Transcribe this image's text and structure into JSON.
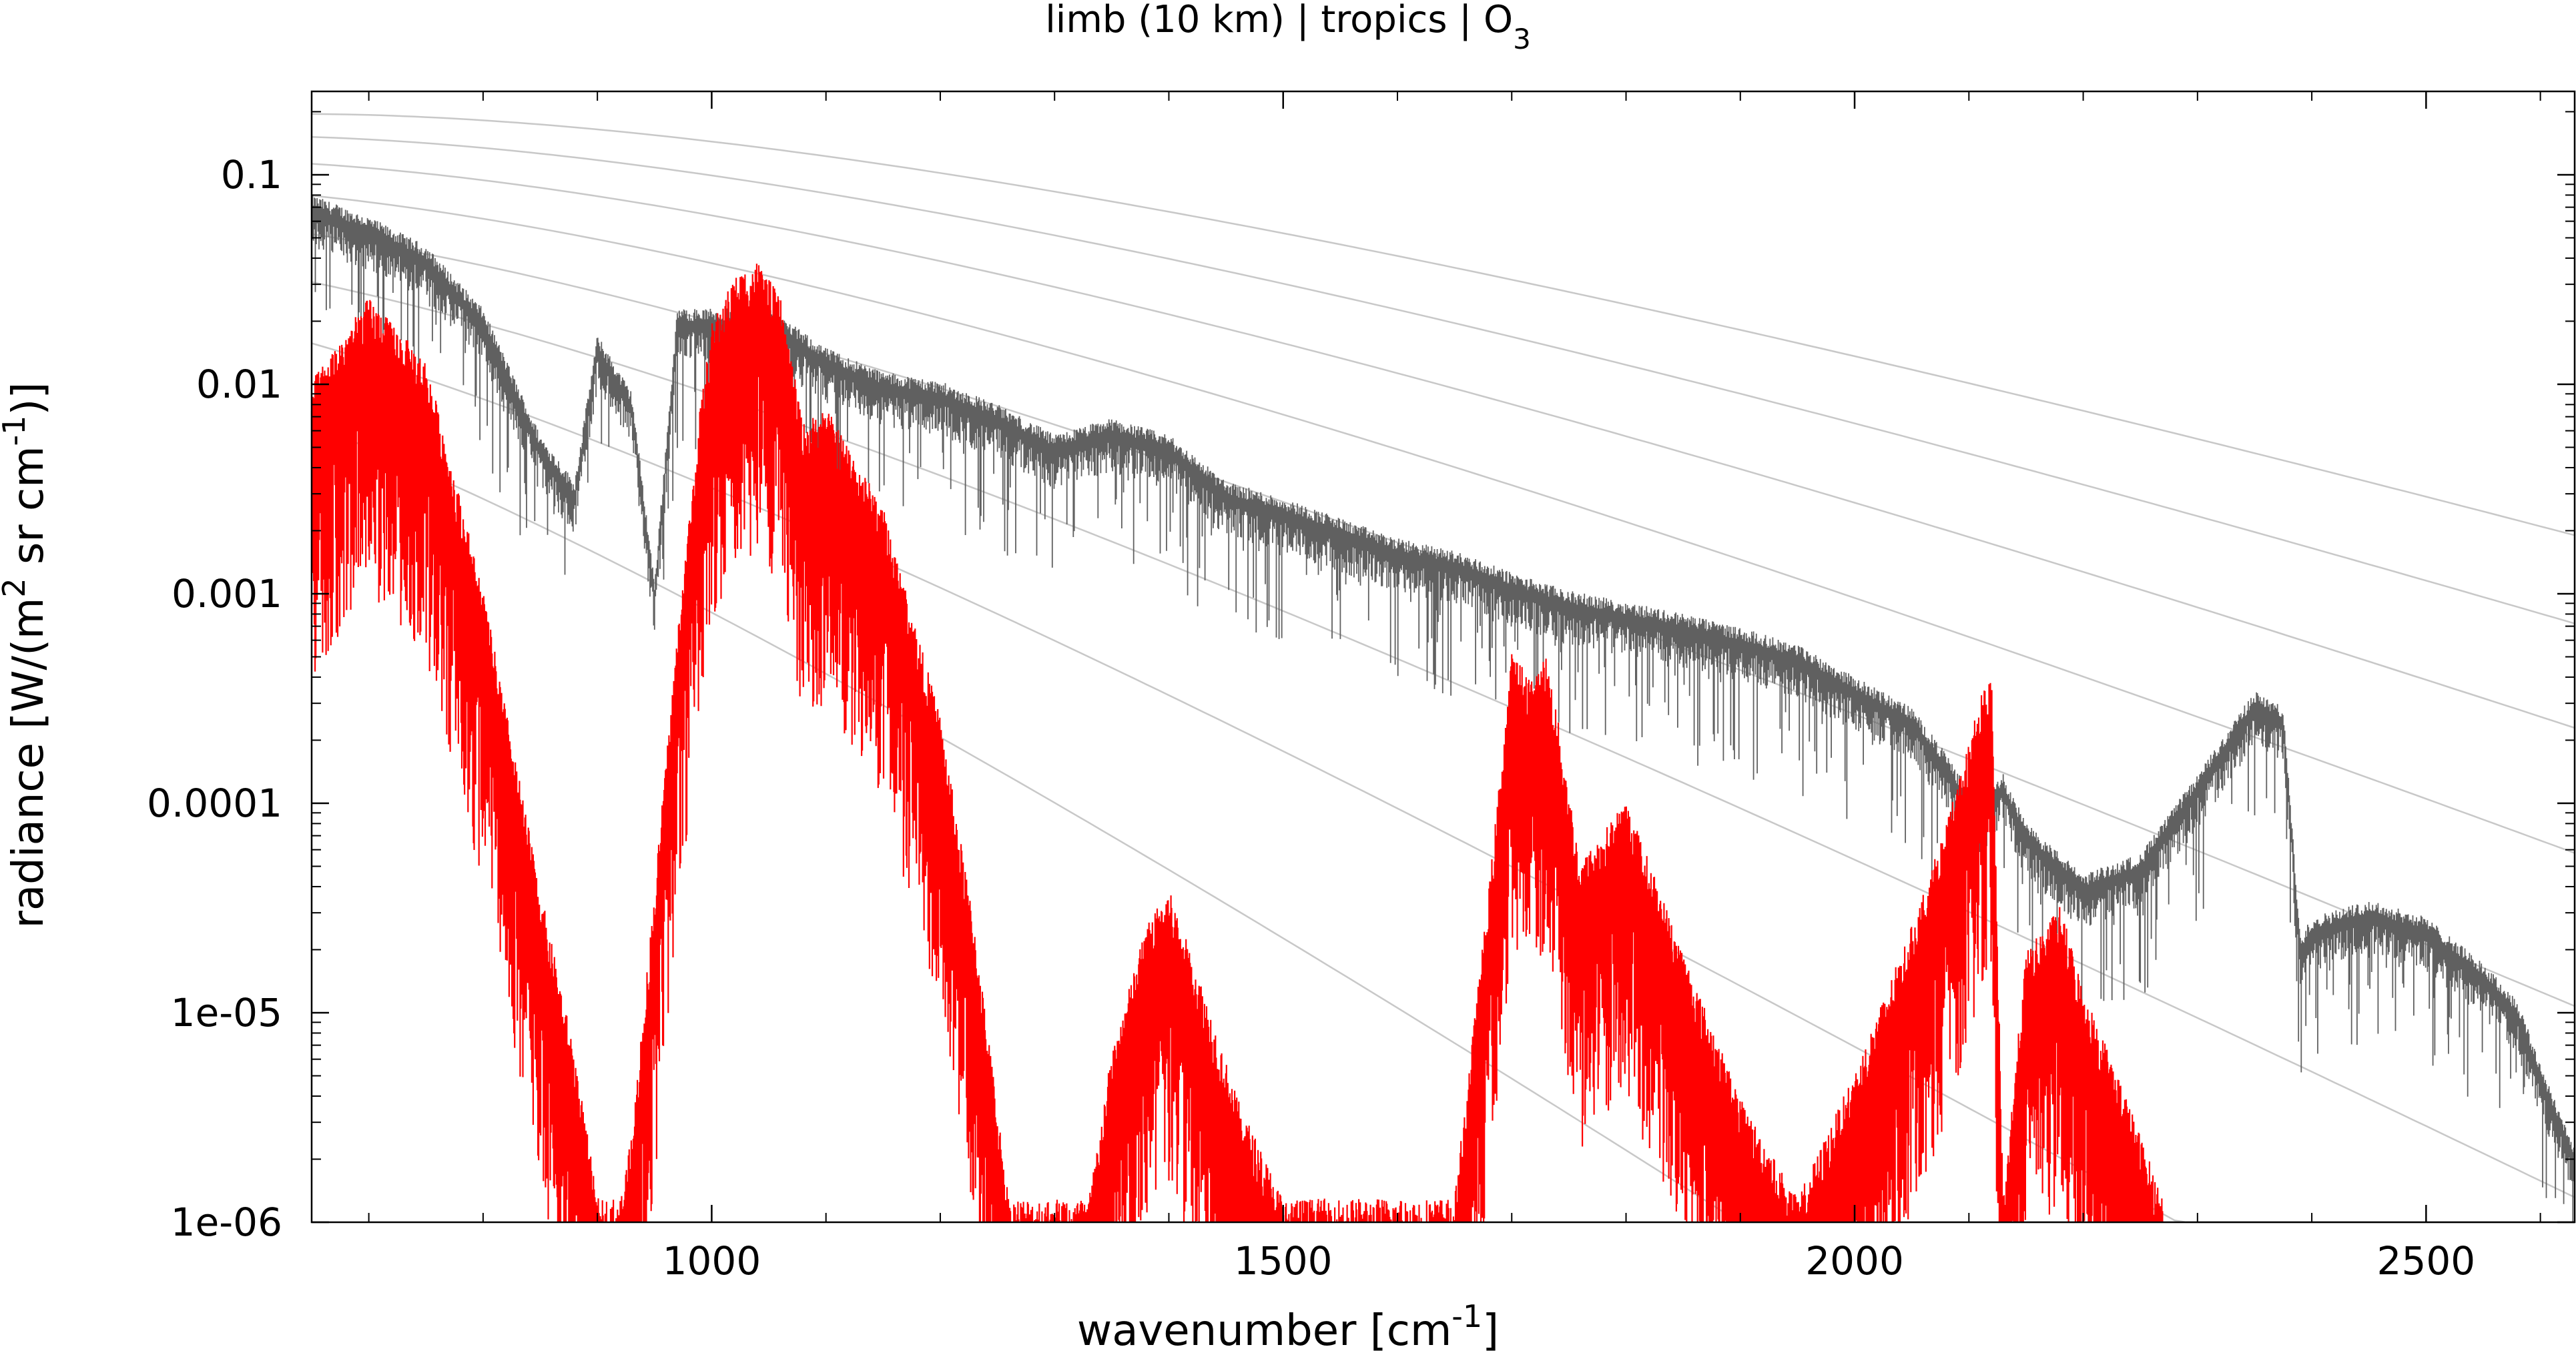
{
  "chart_data": {
    "type": "line",
    "title": "limb (10 km) | tropics | O",
    "title_sub": "3",
    "xlabel_main": "wavenumber [cm",
    "xlabel_sup": "-1",
    "xlabel_end": "]",
    "ylabel_main": "radiance [W/(m",
    "ylabel_sup1": "2",
    "ylabel_mid": " sr cm",
    "ylabel_sup2": "-1",
    "ylabel_end": ")]",
    "xlim": [
      650,
      2630
    ],
    "ylim": [
      1e-06,
      0.25
    ],
    "yscale": "log",
    "grid": false,
    "x_ticks": [
      1000,
      1500,
      2000,
      2500
    ],
    "x_tick_labels": [
      "1000",
      "1500",
      "2000",
      "2500"
    ],
    "y_ticks": [
      0.1,
      0.01,
      0.001,
      0.0001,
      1e-05,
      1e-06
    ],
    "y_tick_labels": [
      "0.1",
      "0.01",
      "0.001",
      "0.0001",
      "1e-05",
      "1e-06"
    ],
    "reference_curves_temperature_K": [
      150,
      175,
      200,
      225,
      250,
      275,
      300,
      325
    ],
    "series": [
      {
        "color": "#606060",
        "x": [
          650,
          700,
          750,
          800,
          850,
          880,
          900,
          930,
          950,
          970,
          990,
          1050,
          1100,
          1150,
          1200,
          1250,
          1300,
          1350,
          1400,
          1450,
          1500,
          1550,
          1600,
          1650,
          1700,
          1750,
          1800,
          1850,
          1900,
          1950,
          2000,
          2050,
          2080,
          2100,
          2130,
          2150,
          2200,
          2250,
          2300,
          2350,
          2375,
          2390,
          2400,
          2450,
          2500,
          2550,
          2580,
          2600,
          2630
        ],
        "y": [
          0.07,
          0.055,
          0.04,
          0.02,
          0.005,
          0.003,
          0.015,
          0.008,
          0.001,
          0.02,
          0.02,
          0.02,
          0.013,
          0.01,
          0.009,
          0.007,
          0.005,
          0.006,
          0.005,
          0.003,
          0.0025,
          0.002,
          0.0016,
          0.0014,
          0.0011,
          0.0009,
          0.0008,
          0.0007,
          0.0006,
          0.0005,
          0.00035,
          0.00025,
          0.00015,
          0.0001,
          0.00012,
          7e-05,
          4e-05,
          5e-05,
          0.00012,
          0.0003,
          0.00025,
          2e-05,
          2.5e-05,
          3e-05,
          2.5e-05,
          1.5e-05,
          1e-05,
          5e-06,
          2e-06
        ]
      },
      {
        "color": "#ff0000",
        "x": [
          650,
          700,
          750,
          800,
          850,
          880,
          900,
          920,
          930,
          950,
          970,
          990,
          1000,
          1020,
          1040,
          1060,
          1080,
          1100,
          1150,
          1200,
          1230,
          1260,
          1330,
          1350,
          1380,
          1400,
          1430,
          1460,
          1500,
          1650,
          1680,
          1700,
          1720,
          1730,
          1740,
          1760,
          1800,
          1850,
          1900,
          1950,
          2000,
          2050,
          2080,
          2100,
          2110,
          2120,
          2130,
          2150,
          2180,
          2200,
          2230,
          2270
        ],
        "y": [
          0.008,
          0.02,
          0.01,
          0.0008,
          3e-05,
          5e-06,
          1e-06,
          1e-06,
          2e-06,
          3e-05,
          0.0005,
          0.006,
          0.015,
          0.025,
          0.03,
          0.02,
          0.005,
          0.006,
          0.002,
          0.0002,
          2e-05,
          1e-06,
          1e-06,
          5e-06,
          2e-05,
          3e-05,
          1e-05,
          3e-06,
          1e-06,
          1e-06,
          3e-05,
          0.0004,
          0.0003,
          0.0004,
          0.0002,
          4e-05,
          8e-05,
          1.5e-05,
          3e-06,
          1e-06,
          4e-06,
          2e-05,
          6e-05,
          0.00015,
          0.00025,
          0.0003,
          1e-06,
          1.5e-05,
          2.5e-05,
          1e-05,
          4e-06,
          1e-06
        ]
      }
    ]
  }
}
